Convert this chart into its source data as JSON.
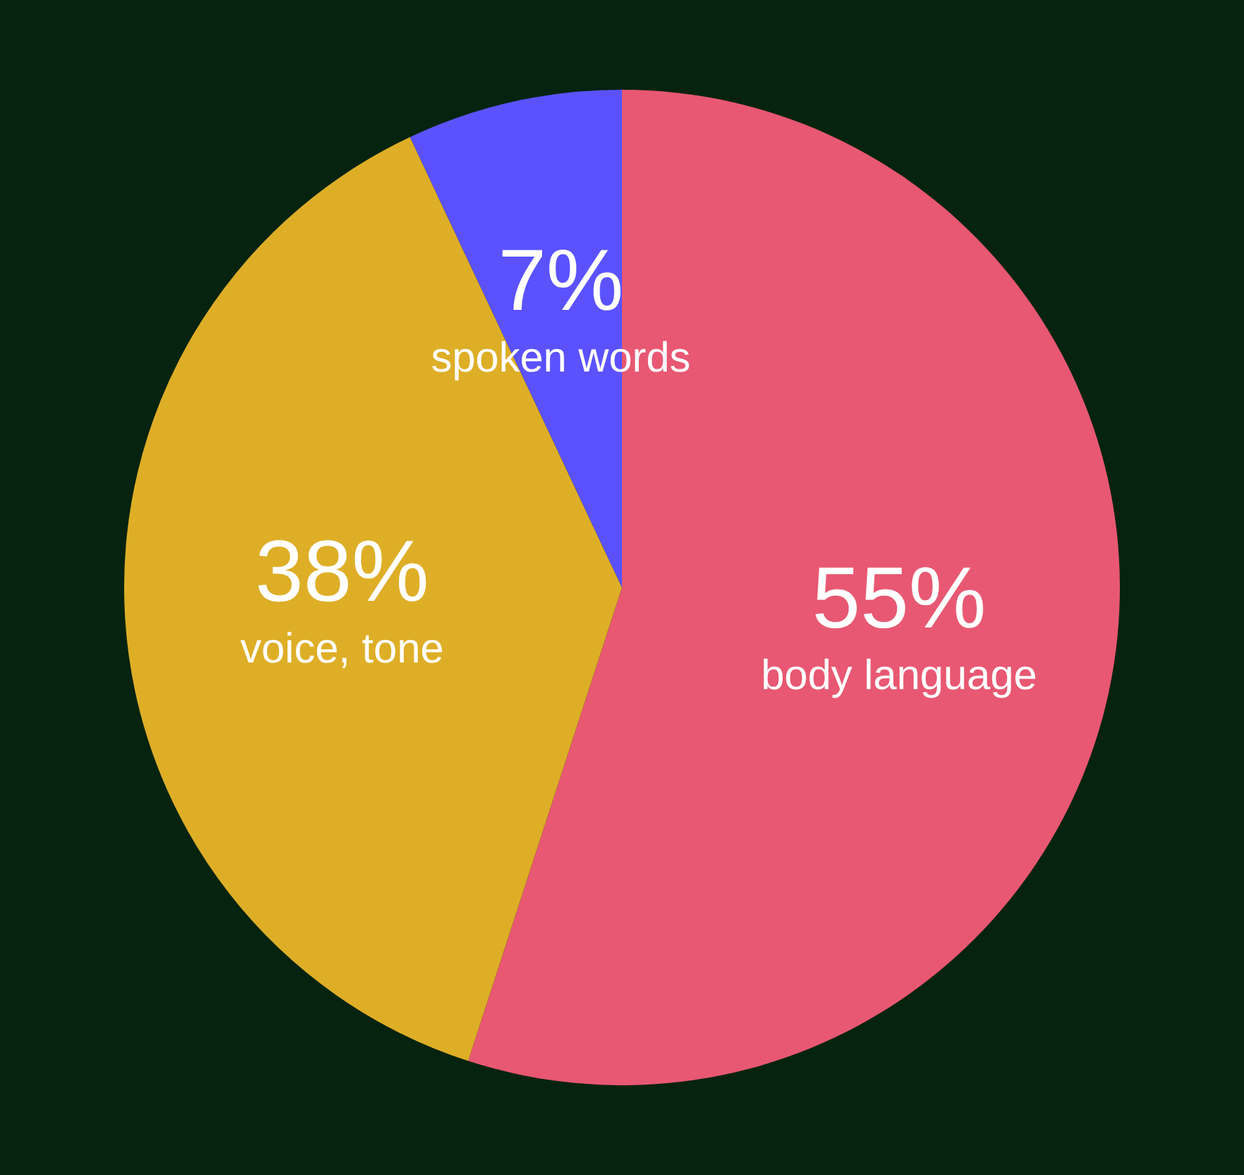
{
  "chart_data": {
    "type": "pie",
    "categories": [
      "body language",
      "voice, tone",
      "spoken words"
    ],
    "values": [
      55,
      38,
      7
    ],
    "colors": [
      "#e85872",
      "#deae27",
      "#5b52fe"
    ],
    "value_labels": [
      "55%",
      "38%",
      "7%"
    ]
  }
}
